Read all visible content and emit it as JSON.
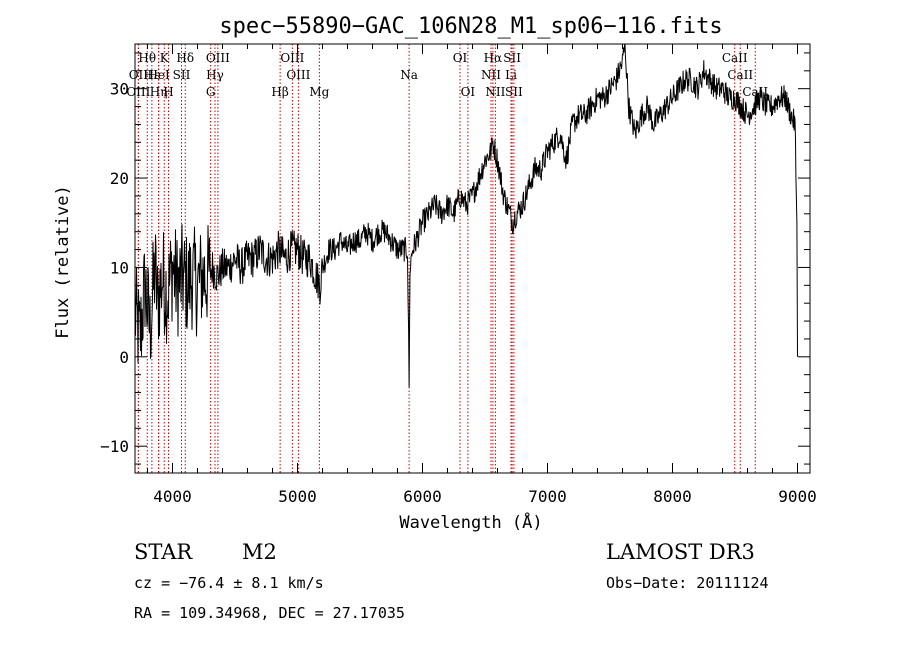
{
  "chart_data": {
    "type": "line",
    "title": "spec−55890−GAC_106N28_M1_sp06−116.fits",
    "xlabel": "Wavelength (Å)",
    "ylabel": "Flux (relative)",
    "xlim": [
      3700,
      9100
    ],
    "ylim": [
      -13,
      35
    ],
    "x_ticks": [
      4000,
      5000,
      6000,
      7000,
      8000,
      9000
    ],
    "y_ticks": [
      -10,
      0,
      10,
      20,
      30
    ],
    "x_tick_labels": [
      "4000",
      "5000",
      "6000",
      "7000",
      "8000",
      "9000"
    ],
    "y_tick_labels": [
      "−10",
      "0",
      "10",
      "20",
      "30"
    ],
    "series": [
      {
        "name": "spectrum",
        "color": "#000000",
        "x": [
          3700,
          3740,
          3780,
          3820,
          3860,
          3880,
          3920,
          3960,
          4000,
          4040,
          4080,
          4120,
          4160,
          4200,
          4240,
          4280,
          4320,
          4360,
          4400,
          4450,
          4500,
          4550,
          4600,
          4650,
          4700,
          4750,
          4800,
          4850,
          4900,
          4950,
          5000,
          5050,
          5100,
          5150,
          5180,
          5200,
          5250,
          5300,
          5350,
          5400,
          5450,
          5500,
          5550,
          5600,
          5650,
          5700,
          5750,
          5800,
          5850,
          5880,
          5893,
          5900,
          5920,
          5950,
          6000,
          6050,
          6100,
          6150,
          6200,
          6250,
          6300,
          6350,
          6400,
          6450,
          6500,
          6550,
          6563,
          6600,
          6650,
          6700,
          6720,
          6750,
          6800,
          6850,
          6900,
          6950,
          7000,
          7050,
          7100,
          7150,
          7200,
          7250,
          7300,
          7350,
          7400,
          7450,
          7500,
          7550,
          7600,
          7620,
          7650,
          7700,
          7750,
          7800,
          7850,
          7900,
          7950,
          8000,
          8050,
          8100,
          8150,
          8200,
          8250,
          8300,
          8350,
          8400,
          8450,
          8500,
          8550,
          8600,
          8650,
          8700,
          8750,
          8800,
          8850,
          8900,
          8950,
          8980,
          8995,
          9000
        ],
        "y": [
          5,
          2,
          8,
          3,
          10,
          6,
          9,
          7,
          10,
          8,
          9,
          8,
          9,
          8,
          9,
          9,
          10,
          9,
          10,
          10,
          11,
          10,
          11,
          11,
          12,
          11,
          11,
          12,
          11,
          12,
          12,
          11,
          11,
          9,
          8,
          10,
          12,
          12,
          13,
          12,
          13,
          13,
          14,
          13,
          14,
          14,
          13,
          12,
          12,
          12,
          -3,
          10,
          12,
          13,
          15,
          16,
          17,
          16,
          17,
          16,
          18,
          17,
          18,
          20,
          22,
          23,
          24,
          22,
          18,
          16,
          15,
          16,
          17,
          19,
          21,
          21,
          23,
          24,
          25,
          22,
          26,
          27,
          27,
          28,
          29,
          29,
          30,
          31,
          33,
          35,
          28,
          25,
          27,
          28,
          26,
          27,
          28,
          29,
          30,
          31,
          31,
          30,
          32,
          31,
          30,
          30,
          29,
          29,
          28,
          27,
          28,
          29,
          28,
          28,
          29,
          29,
          27,
          26,
          15,
          0
        ]
      }
    ],
    "lines": [
      {
        "label": "Hθ",
        "x": 3798,
        "row": 0
      },
      {
        "label": "K",
        "x": 3934,
        "row": 0
      },
      {
        "label": "Hδ",
        "x": 4102,
        "row": 0
      },
      {
        "label": "OIII",
        "x": 4363,
        "row": 0
      },
      {
        "label": "OIII",
        "x": 4959,
        "row": 0
      },
      {
        "label": "OI",
        "x": 6300,
        "row": 0
      },
      {
        "label": "Hα",
        "x": 6563,
        "row": 0
      },
      {
        "label": "SII",
        "x": 6717,
        "row": 0
      },
      {
        "label": "CaII",
        "x": 8498,
        "row": 0
      },
      {
        "label": "OII",
        "x": 3727,
        "row": 1
      },
      {
        "label": "Hε",
        "x": 3835,
        "row": 1
      },
      {
        "label": "HeI",
        "x": 3889,
        "row": 1
      },
      {
        "label": "SII",
        "x": 4072,
        "row": 1
      },
      {
        "label": "Hγ",
        "x": 4340,
        "row": 1
      },
      {
        "label": "OIII",
        "x": 5007,
        "row": 1
      },
      {
        "label": "Na",
        "x": 5893,
        "row": 1
      },
      {
        "label": "NII",
        "x": 6548,
        "row": 1
      },
      {
        "label": "Li",
        "x": 6708,
        "row": 1
      },
      {
        "label": "CaII",
        "x": 8542,
        "row": 1
      },
      {
        "label": "OIII",
        "x": 3727,
        "row": 2
      },
      {
        "label": "Hη",
        "x": 3889,
        "row": 2
      },
      {
        "label": "H",
        "x": 3968,
        "row": 2
      },
      {
        "label": "G",
        "x": 4305,
        "row": 2
      },
      {
        "label": "Hβ",
        "x": 4861,
        "row": 2
      },
      {
        "label": "Mg",
        "x": 5175,
        "row": 2
      },
      {
        "label": "OI",
        "x": 6363,
        "row": 2
      },
      {
        "label": "NII",
        "x": 6583,
        "row": 2
      },
      {
        "label": "SII",
        "x": 6731,
        "row": 2
      },
      {
        "label": "CaII",
        "x": 8662,
        "row": 2
      }
    ],
    "line_color": "#cc0000"
  },
  "info": {
    "class": "STAR",
    "subclass": "M2",
    "survey": "LAMOST DR3",
    "cz": "cz = −76.4 ± 8.1 km/s",
    "obs_date": "Obs−Date: 20111124",
    "coords": "RA = 109.34968, DEC =  27.17035"
  }
}
